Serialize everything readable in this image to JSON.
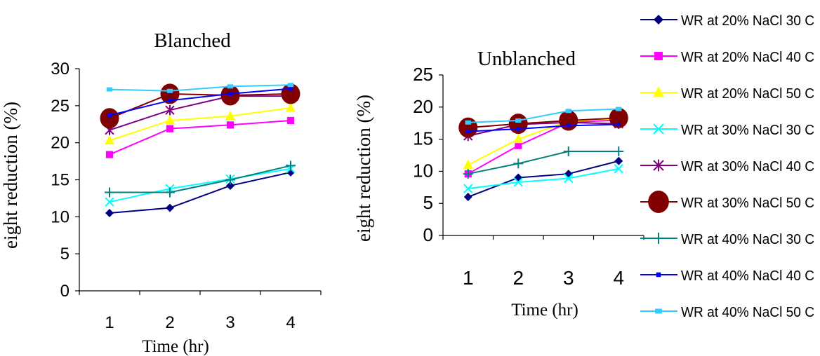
{
  "chart_data": [
    {
      "type": "line",
      "title": "Blanched",
      "xlabel": "Time (hr)",
      "ylabel": "eight reduction (%)",
      "x": [
        1,
        2,
        3,
        4
      ],
      "ylim": [
        0,
        30
      ],
      "yticks": [
        0,
        5,
        10,
        15,
        20,
        25,
        30
      ],
      "grid": false,
      "series": [
        {
          "name": "WR at 20% NaCl 30 C",
          "values": [
            10.5,
            11.2,
            14.2,
            16.0
          ]
        },
        {
          "name": "WR at 20% NaCl 40 C",
          "values": [
            18.4,
            21.9,
            22.4,
            23.0
          ]
        },
        {
          "name": "WR at 20% NaCl 50 C",
          "values": [
            20.3,
            23.0,
            23.6,
            24.7
          ]
        },
        {
          "name": "WR at 30% NaCl 30 C",
          "values": [
            12.0,
            13.8,
            15.1,
            16.5
          ]
        },
        {
          "name": "WR at 30% NaCl 40 C",
          "values": [
            21.7,
            24.4,
            26.3,
            26.3
          ]
        },
        {
          "name": "WR at 30% NaCl 50 C",
          "values": [
            23.3,
            26.6,
            26.4,
            26.6
          ]
        },
        {
          "name": "WR at 40% NaCl 30 C",
          "values": [
            13.3,
            13.3,
            15.0,
            16.9
          ]
        },
        {
          "name": "WR at 40% NaCl 40 C",
          "values": [
            23.7,
            25.7,
            26.6,
            27.3
          ]
        },
        {
          "name": "WR at 40% NaCl 50 C",
          "values": [
            27.2,
            27.0,
            27.6,
            27.8
          ]
        }
      ]
    },
    {
      "type": "line",
      "title": "Unblanched",
      "xlabel": "Time (hr)",
      "ylabel": "eight reduction (%)",
      "x": [
        1,
        2,
        3,
        4
      ],
      "ylim": [
        0,
        25
      ],
      "yticks": [
        0,
        5,
        10,
        15,
        20,
        25
      ],
      "grid": false,
      "series": [
        {
          "name": "WR at 20% NaCl 30 C",
          "values": [
            6.0,
            9.0,
            9.6,
            11.6
          ]
        },
        {
          "name": "WR at 20% NaCl 40 C",
          "values": [
            9.6,
            14.0,
            17.6,
            18.0
          ]
        },
        {
          "name": "WR at 20% NaCl 50 C",
          "values": [
            11.0,
            15.0,
            17.8,
            18.2
          ]
        },
        {
          "name": "WR at 30% NaCl 30 C",
          "values": [
            7.3,
            8.3,
            8.9,
            10.4
          ]
        },
        {
          "name": "WR at 30% NaCl 40 C",
          "values": [
            15.5,
            17.3,
            17.6,
            17.4
          ]
        },
        {
          "name": "WR at 30% NaCl 50 C",
          "values": [
            16.8,
            17.4,
            17.9,
            18.3
          ]
        },
        {
          "name": "WR at 40% NaCl 30 C",
          "values": [
            9.6,
            11.2,
            13.1,
            13.1
          ]
        },
        {
          "name": "WR at 40% NaCl 40 C",
          "values": [
            16.2,
            16.6,
            17.1,
            17.3
          ]
        },
        {
          "name": "WR at 40% NaCl 50 C",
          "values": [
            17.6,
            17.9,
            19.4,
            19.7
          ]
        }
      ]
    }
  ],
  "legend": {
    "placement": "right",
    "items": [
      {
        "name": "WR at 20% NaCl 30 C",
        "color": "#000080",
        "marker": "diamond"
      },
      {
        "name": "WR at 20% NaCl 40 C",
        "color": "#FF00FF",
        "marker": "square"
      },
      {
        "name": "WR at 20% NaCl 50 C",
        "color": "#FFFF00",
        "marker": "triangle"
      },
      {
        "name": "WR at 30% NaCl 30 C",
        "color": "#00FFFF",
        "marker": "x"
      },
      {
        "name": "WR at 30% NaCl 40 C",
        "color": "#800080",
        "marker": "star"
      },
      {
        "name": "WR at 30% NaCl 50 C",
        "color": "#800000",
        "marker": "circle"
      },
      {
        "name": "WR at 40% NaCl 30 C",
        "color": "#008080",
        "marker": "plus"
      },
      {
        "name": "WR at 40% NaCl 40 C",
        "color": "#0000FF",
        "marker": "small-square"
      },
      {
        "name": "WR at 40% NaCl 50 C",
        "color": "#33CCFF",
        "marker": "dash-square"
      }
    ]
  }
}
